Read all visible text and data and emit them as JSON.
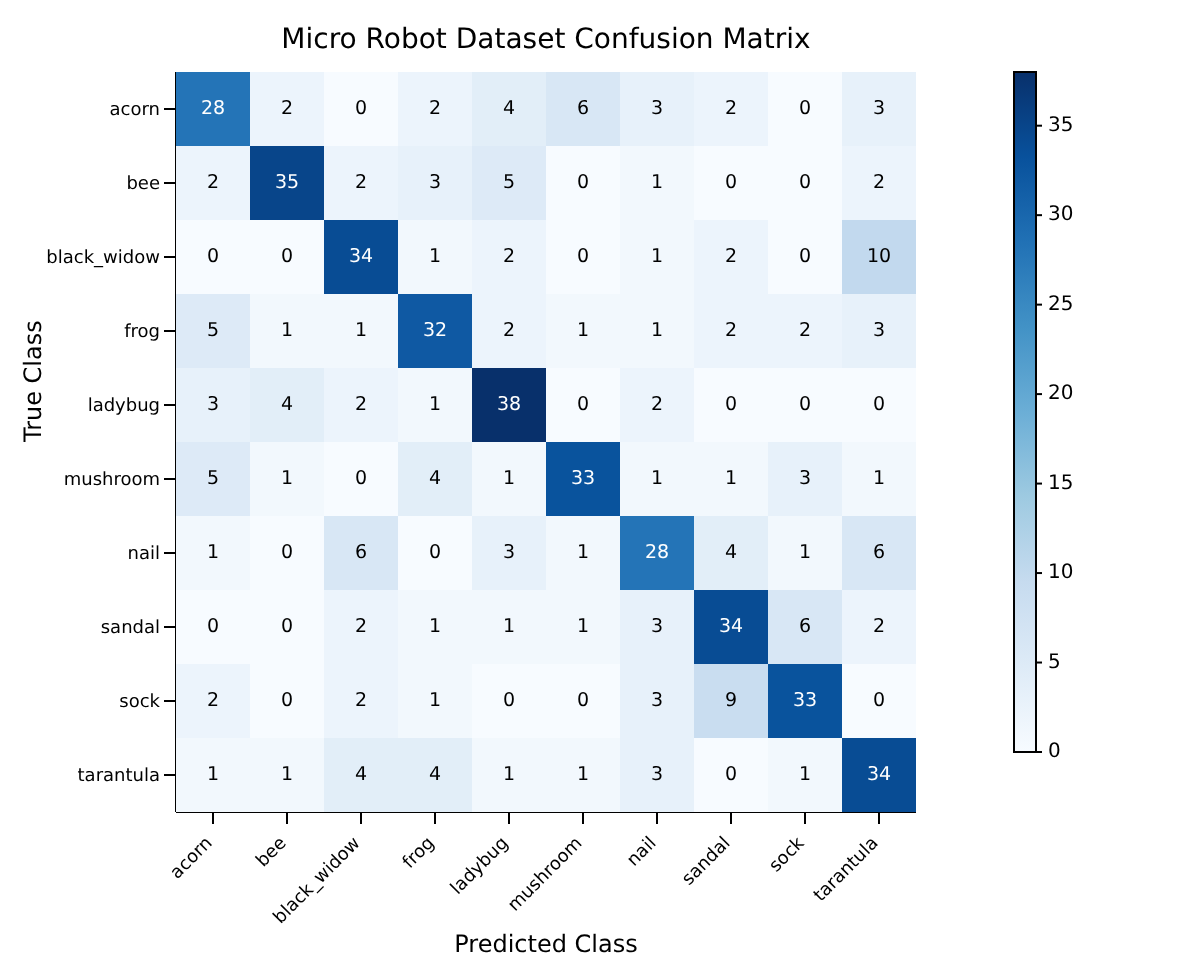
{
  "chart_data": {
    "type": "heatmap",
    "title": "Micro Robot Dataset Confusion Matrix",
    "xlabel": "Predicted Class",
    "ylabel": "True Class",
    "categories": [
      "acorn",
      "bee",
      "black_widow",
      "frog",
      "ladybug",
      "mushroom",
      "nail",
      "sandal",
      "sock",
      "tarantula"
    ],
    "y_categories": [
      "acorn",
      "bee",
      "black_widow",
      "frog",
      "ladybug",
      "mushroom",
      "nail",
      "sandal",
      "sock",
      "tarantula"
    ],
    "cells": [
      [
        28,
        2,
        0,
        2,
        4,
        6,
        3,
        2,
        0,
        3
      ],
      [
        2,
        35,
        2,
        3,
        5,
        0,
        1,
        0,
        0,
        2
      ],
      [
        0,
        0,
        34,
        1,
        2,
        0,
        1,
        2,
        0,
        10
      ],
      [
        5,
        1,
        1,
        32,
        2,
        1,
        1,
        2,
        2,
        3
      ],
      [
        3,
        4,
        2,
        1,
        38,
        0,
        2,
        0,
        0,
        0
      ],
      [
        5,
        1,
        0,
        4,
        1,
        33,
        1,
        1,
        3,
        1
      ],
      [
        1,
        0,
        6,
        0,
        3,
        1,
        28,
        4,
        1,
        6
      ],
      [
        0,
        0,
        2,
        1,
        1,
        1,
        3,
        34,
        6,
        2
      ],
      [
        2,
        0,
        2,
        1,
        0,
        0,
        3,
        9,
        33,
        0
      ],
      [
        1,
        1,
        4,
        4,
        1,
        1,
        3,
        0,
        1,
        34
      ]
    ],
    "clim": [
      0,
      38
    ],
    "cticks": [
      0,
      5,
      10,
      15,
      20,
      25,
      30,
      35
    ],
    "data_labels": true
  }
}
